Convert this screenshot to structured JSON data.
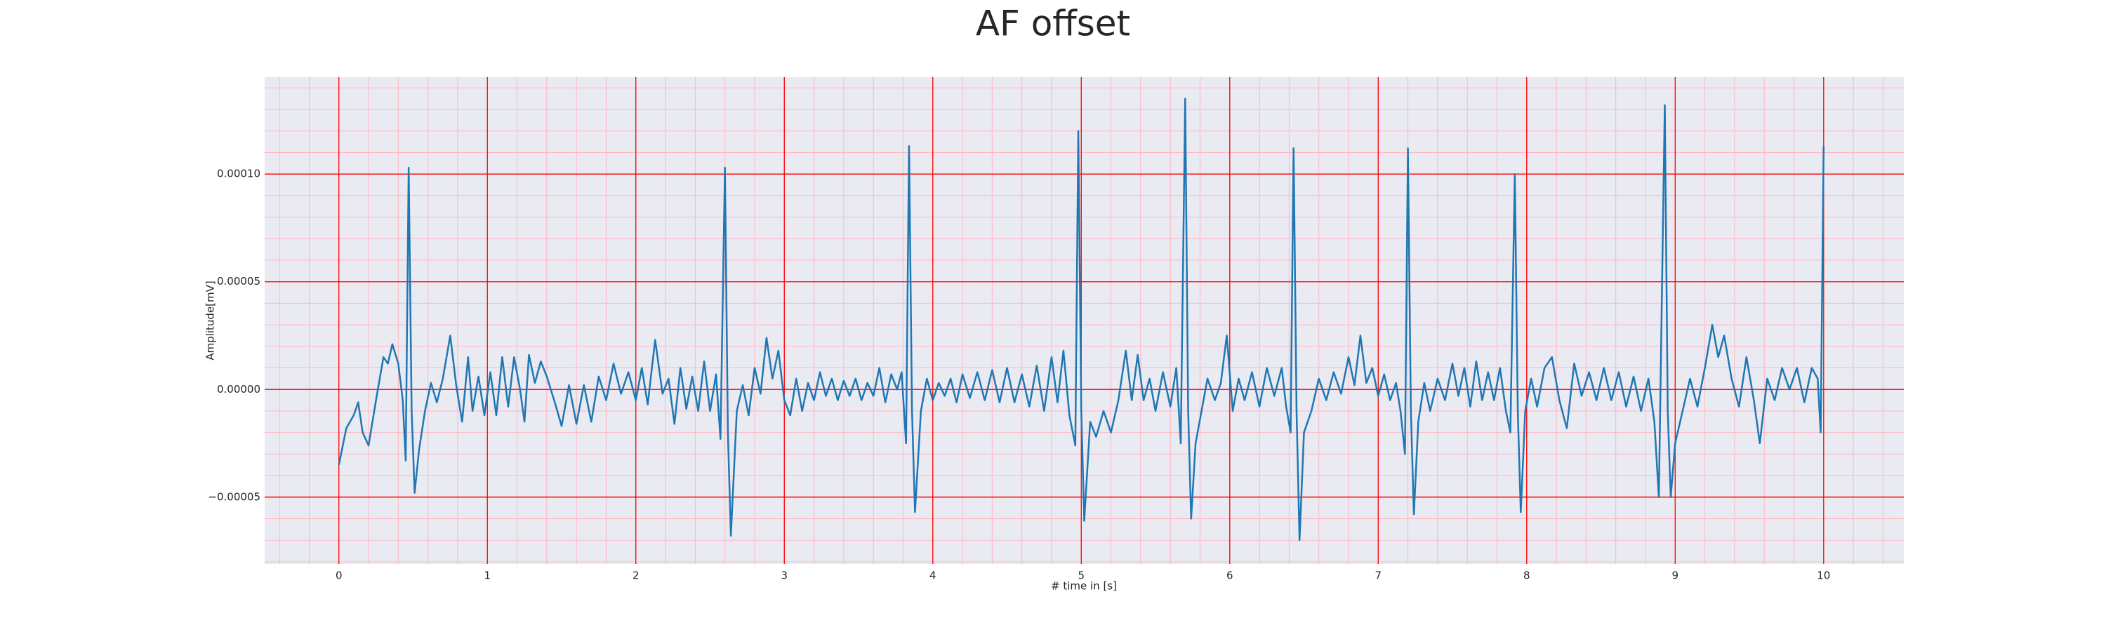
{
  "chart_data": {
    "type": "line",
    "title": "AF offset",
    "xlabel": "# time in [s]",
    "ylabel": "Amplitude[mV]",
    "xlim": [
      -0.5,
      10.54
    ],
    "ylim": [
      -8.1e-05,
      0.000145
    ],
    "xticks": [
      0,
      1,
      2,
      3,
      4,
      5,
      6,
      7,
      8,
      9,
      10
    ],
    "yticks": [
      {
        "value": -5e-05,
        "label": "−0.00005"
      },
      {
        "value": 0,
        "label": "0.00000"
      },
      {
        "value": 5e-05,
        "label": "0.00005"
      },
      {
        "value": 0.0001,
        "label": "0.00010"
      }
    ],
    "grid": true,
    "grid_color": "#ff0000",
    "minor_grid_color": "#ffb6c1",
    "minor_divisions": 5,
    "background": "#eaeaf2",
    "series": [
      {
        "color": "#1f77b4",
        "x": [
          0,
          0.05,
          0.1,
          0.13,
          0.16,
          0.2,
          0.25,
          0.3,
          0.33,
          0.36,
          0.4,
          0.43,
          0.45,
          0.47,
          0.49,
          0.51,
          0.54,
          0.58,
          0.62,
          0.66,
          0.7,
          0.75,
          0.79,
          0.83,
          0.87,
          0.9,
          0.94,
          0.98,
          1.02,
          1.06,
          1.1,
          1.14,
          1.18,
          1.22,
          1.25,
          1.28,
          1.32,
          1.36,
          1.4,
          1.45,
          1.5,
          1.55,
          1.6,
          1.65,
          1.7,
          1.75,
          1.8,
          1.85,
          1.9,
          1.95,
          2.0,
          2.04,
          2.08,
          2.13,
          2.18,
          2.22,
          2.26,
          2.3,
          2.34,
          2.38,
          2.42,
          2.46,
          2.5,
          2.54,
          2.57,
          2.6,
          2.62,
          2.64,
          2.68,
          2.72,
          2.76,
          2.8,
          2.84,
          2.88,
          2.92,
          2.96,
          3.0,
          3.04,
          3.08,
          3.12,
          3.16,
          3.2,
          3.24,
          3.28,
          3.32,
          3.36,
          3.4,
          3.44,
          3.48,
          3.52,
          3.56,
          3.6,
          3.64,
          3.68,
          3.72,
          3.76,
          3.79,
          3.82,
          3.84,
          3.86,
          3.88,
          3.92,
          3.96,
          4.0,
          4.04,
          4.08,
          4.12,
          4.16,
          4.2,
          4.25,
          4.3,
          4.35,
          4.4,
          4.45,
          4.5,
          4.55,
          4.6,
          4.65,
          4.7,
          4.75,
          4.8,
          4.84,
          4.88,
          4.92,
          4.96,
          4.98,
          5.0,
          5.02,
          5.06,
          5.1,
          5.15,
          5.2,
          5.25,
          5.3,
          5.34,
          5.38,
          5.42,
          5.46,
          5.5,
          5.55,
          5.6,
          5.64,
          5.67,
          5.7,
          5.72,
          5.74,
          5.77,
          5.81,
          5.85,
          5.9,
          5.94,
          5.98,
          6.02,
          6.06,
          6.1,
          6.15,
          6.2,
          6.25,
          6.3,
          6.35,
          6.38,
          6.41,
          6.43,
          6.45,
          6.47,
          6.5,
          6.55,
          6.6,
          6.65,
          6.7,
          6.75,
          6.8,
          6.84,
          6.88,
          6.92,
          6.96,
          7.0,
          7.04,
          7.08,
          7.12,
          7.15,
          7.18,
          7.2,
          7.22,
          7.24,
          7.27,
          7.31,
          7.35,
          7.4,
          7.45,
          7.5,
          7.54,
          7.58,
          7.62,
          7.66,
          7.7,
          7.74,
          7.78,
          7.82,
          7.86,
          7.89,
          7.92,
          7.94,
          7.96,
          7.99,
          8.03,
          8.07,
          8.12,
          8.17,
          8.22,
          8.27,
          8.32,
          8.37,
          8.42,
          8.47,
          8.52,
          8.57,
          8.62,
          8.67,
          8.72,
          8.77,
          8.82,
          8.86,
          8.89,
          8.93,
          8.95,
          8.97,
          9.0,
          9.05,
          9.1,
          9.15,
          9.2,
          9.25,
          9.29,
          9.33,
          9.38,
          9.43,
          9.48,
          9.53,
          9.57,
          9.62,
          9.67,
          9.72,
          9.77,
          9.82,
          9.87,
          9.92,
          9.96,
          9.98,
          10.0
        ],
        "values": [
          -3.5e-05,
          -1.8e-05,
          -1.2e-05,
          -6e-06,
          -2e-05,
          -2.6e-05,
          -5e-06,
          1.5e-05,
          1.2e-05,
          2.1e-05,
          1.2e-05,
          -5e-06,
          -3.3e-05,
          0.000103,
          -1e-05,
          -4.8e-05,
          -2.8e-05,
          -1e-05,
          3e-06,
          -6e-06,
          5e-06,
          2.5e-05,
          2e-06,
          -1.5e-05,
          1.5e-05,
          -1e-05,
          6e-06,
          -1.2e-05,
          8e-06,
          -1.2e-05,
          1.5e-05,
          -8e-06,
          1.5e-05,
          0,
          -1.5e-05,
          1.6e-05,
          3e-06,
          1.3e-05,
          6e-06,
          -5e-06,
          -1.7e-05,
          2e-06,
          -1.6e-05,
          2e-06,
          -1.5e-05,
          6e-06,
          -5e-06,
          1.2e-05,
          -2e-06,
          8e-06,
          -5e-06,
          1e-05,
          -7e-06,
          2.3e-05,
          -2e-06,
          5e-06,
          -1.6e-05,
          1e-05,
          -9e-06,
          6e-06,
          -1e-05,
          1.3e-05,
          -1e-05,
          7e-06,
          -2.3e-05,
          0.000103,
          -2e-05,
          -6.8e-05,
          -1e-05,
          2e-06,
          -1.2e-05,
          1e-05,
          -2e-06,
          2.4e-05,
          5e-06,
          1.8e-05,
          -5e-06,
          -1.2e-05,
          5e-06,
          -1e-05,
          3e-06,
          -5e-06,
          8e-06,
          -3e-06,
          5e-06,
          -5e-06,
          4e-06,
          -3e-06,
          5e-06,
          -5e-06,
          3e-06,
          -3e-06,
          1e-05,
          -6e-06,
          7e-06,
          0,
          8e-06,
          -2.5e-05,
          0.000113,
          -1e-05,
          -5.7e-05,
          -1e-05,
          5e-06,
          -5e-06,
          3e-06,
          -3e-06,
          5e-06,
          -6e-06,
          7e-06,
          -4e-06,
          8e-06,
          -5e-06,
          9e-06,
          -6e-06,
          1e-05,
          -6e-06,
          7e-06,
          -8e-06,
          1.1e-05,
          -1e-05,
          1.5e-05,
          -6e-06,
          1.8e-05,
          -1.2e-05,
          -2.6e-05,
          0.00012,
          -1e-05,
          -6.1e-05,
          -1.5e-05,
          -2.2e-05,
          -1e-05,
          -2e-05,
          -5e-06,
          1.8e-05,
          -5e-06,
          1.6e-05,
          -5e-06,
          5e-06,
          -1e-05,
          8e-06,
          -8e-06,
          1e-05,
          -2.5e-05,
          0.000135,
          -1e-05,
          -6e-05,
          -2.5e-05,
          -1e-05,
          5e-06,
          -5e-06,
          3e-06,
          2.5e-05,
          -1e-05,
          5e-06,
          -5e-06,
          8e-06,
          -8e-06,
          1e-05,
          -3e-06,
          1e-05,
          -8e-06,
          -2e-05,
          0.000112,
          -1e-05,
          -7e-05,
          -2e-05,
          -1e-05,
          5e-06,
          -5e-06,
          8e-06,
          -2e-06,
          1.5e-05,
          2e-06,
          2.5e-05,
          3e-06,
          1e-05,
          -3e-06,
          7e-06,
          -5e-06,
          3e-06,
          -1e-05,
          -3e-05,
          0.000112,
          -1e-05,
          -5.8e-05,
          -1.5e-05,
          3e-06,
          -1e-05,
          5e-06,
          -5e-06,
          1.2e-05,
          -3e-06,
          1e-05,
          -8e-06,
          1.3e-05,
          -5e-06,
          8e-06,
          -5e-06,
          1e-05,
          -1e-05,
          -2e-05,
          0.0001,
          -1e-05,
          -5.7e-05,
          -1e-05,
          5e-06,
          -8e-06,
          1e-05,
          1.5e-05,
          -5e-06,
          -1.8e-05,
          1.2e-05,
          -3e-06,
          8e-06,
          -5e-06,
          1e-05,
          -5e-06,
          8e-06,
          -8e-06,
          6e-06,
          -1e-05,
          5e-06,
          -1.5e-05,
          -5e-05,
          0.000132,
          -1e-05,
          -5e-05,
          -2.5e-05,
          -1e-05,
          5e-06,
          -8e-06,
          1e-05,
          3e-05,
          1.5e-05,
          2.5e-05,
          5e-06,
          -8e-06,
          1.5e-05,
          -5e-06,
          -2.5e-05,
          5e-06,
          -5e-06,
          1e-05,
          0,
          1e-05,
          -6e-06,
          1e-05,
          5e-06,
          -2e-05,
          0.000113
        ]
      }
    ]
  }
}
